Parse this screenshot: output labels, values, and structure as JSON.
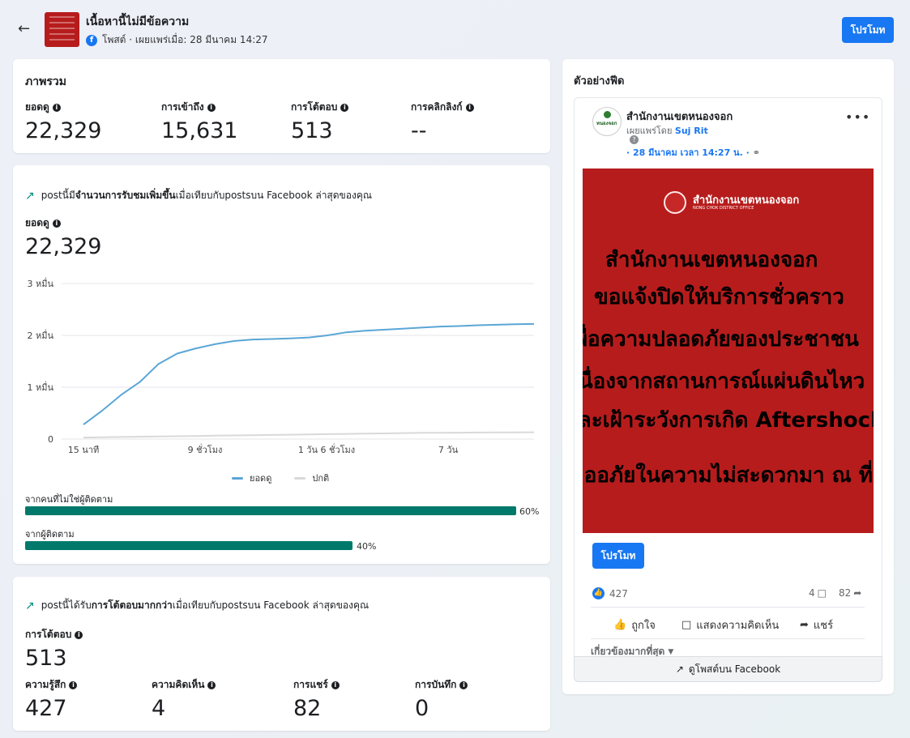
{
  "header": {
    "back_icon": "back-arrow-icon",
    "title": "เนื้อหานี้ไม่มีข้อความ",
    "subtitle": "โพสต์ · เผยแพร่เมื่อ: 28 มีนาคม 14:27",
    "promote_label": "โปรโมท"
  },
  "overview": {
    "title": "ภาพรวม",
    "metrics": [
      {
        "label": "ยอดดู",
        "value": "22,329"
      },
      {
        "label": "การเข้าถึง",
        "value": "15,631"
      },
      {
        "label": "การโต้ตอบ",
        "value": "513"
      },
      {
        "label": "การคลิกลิงก์",
        "value": "--"
      }
    ]
  },
  "views_card": {
    "trend_prefix": "postนี้มี",
    "trend_bold": "จำนวนการรับชมเพิ่มขึ้น",
    "trend_suffix": "เมื่อเทียบกับpostsบน Facebook ล่าสุดของคุณ",
    "metric_label": "ยอดดู",
    "metric_value": "22,329",
    "audience": [
      {
        "label": "จากคนที่ไม่ใช่ผู้ติดตาม",
        "percent": 60,
        "percent_label": "60%"
      },
      {
        "label": "จากผู้ติดตาม",
        "percent": 40,
        "percent_label": "40%"
      }
    ]
  },
  "chart_data": {
    "type": "line",
    "y_ticks": [
      "0",
      "1 หมื่น",
      "2 หมื่น",
      "3 หมื่น"
    ],
    "x_ticks": [
      "15 นาที",
      "9 ชั่วโมง",
      "1 วัน 6 ชั่วโมง",
      "7 วัน"
    ],
    "ylim": [
      0,
      30000
    ],
    "series": [
      {
        "name": "ยอดดู",
        "color": "#5aa6d6",
        "values": [
          2800,
          5500,
          8500,
          11000,
          14500,
          16500,
          17500,
          18300,
          18900,
          19200,
          19300,
          19400,
          19600,
          20000,
          20600,
          20900,
          21100,
          21300,
          21500,
          21700,
          21800,
          21950,
          22050,
          22150,
          22200
        ]
      },
      {
        "name": "ปกติ",
        "color": "#d9d9d9",
        "values": [
          300,
          350,
          400,
          450,
          500,
          550,
          600,
          650,
          700,
          750,
          800,
          850,
          900,
          950,
          1000,
          1050,
          1100,
          1150,
          1200,
          1220,
          1240,
          1260,
          1280,
          1300,
          1320
        ]
      }
    ]
  },
  "engagement_card": {
    "trend_prefix": "postนี้ได้รับ",
    "trend_bold": "การโต้ตอบมากกว่า",
    "trend_suffix": "เมื่อเทียบกับpostsบน Facebook ล่าสุดของคุณ",
    "metric_label": "การโต้ตอบ",
    "metric_value": "513",
    "breakdown": [
      {
        "label": "ความรู้สึก",
        "value": "427"
      },
      {
        "label": "ความคิดเห็น",
        "value": "4"
      },
      {
        "label": "การแชร์",
        "value": "82"
      },
      {
        "label": "การบันทึก",
        "value": "0"
      }
    ]
  },
  "feed_preview": {
    "title": "ตัวอย่างฟีด",
    "page_name": "สำนักงานเขตหนองจอก",
    "avatar_text": "หนองจอก",
    "published_by_prefix": "เผยแพร่โดย",
    "published_by_name": "Suj Rit",
    "timestamp": "· 28 มีนาคม เวลา 14:27 น. ·",
    "more_icon": "more-dots-icon",
    "image": {
      "org_name": "สำนักงานเขตหนองจอก",
      "org_name_en": "NONG CHOK DISTRICT OFFICE",
      "lines": [
        "สำนักงานเขตหนองจอก",
        "ขอแจ้งปิดให้บริการชั่วคราว",
        "เพื่อความปลอดภัยของประชาชน",
        "เนื่องจากสถานการณ์แผ่นดินไหว",
        "และเฝ้าระวังการเกิด Aftershock",
        "ขออภัยในความไม่สะดวกมา ณ ที่นี้"
      ]
    },
    "promote_label": "โปรโมท",
    "likes": "427",
    "comments": "4",
    "shares": "82",
    "actions": {
      "like": "ถูกใจ",
      "comment": "แสดงความคิดเห็น",
      "share": "แชร์"
    },
    "sort_label": "เกี่ยวข้องมากที่สุด",
    "view_on_fb": "ดูโพสต์บน Facebook"
  }
}
